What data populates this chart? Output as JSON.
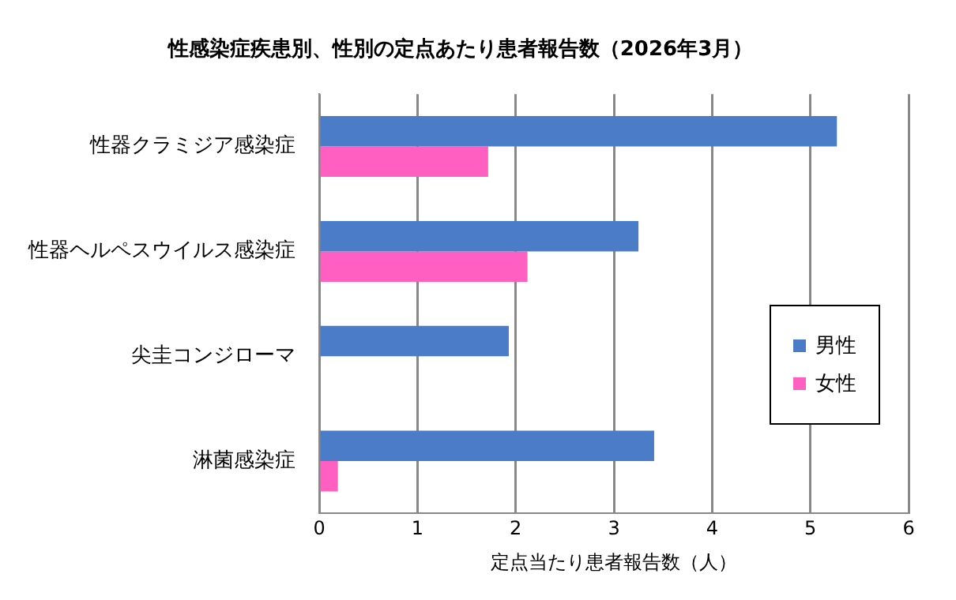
{
  "chart_data": {
    "type": "bar",
    "orientation": "horizontal",
    "title": "性感染症疾患別、性別の定点あたり患者報告数（2026年3月）",
    "xlabel": "定点当たり患者報告数（人）",
    "categories": [
      "性器クラミジア感染症",
      "性器ヘルペスウイルス感染症",
      "尖圭コンジローマ",
      "淋菌感染症"
    ],
    "series": [
      {
        "name": "男性",
        "color": "#4a7cc8",
        "values": [
          5.27,
          3.25,
          1.93,
          3.41
        ]
      },
      {
        "name": "女性",
        "color": "#ff5fc0",
        "values": [
          1.72,
          2.12,
          0,
          0.19
        ]
      }
    ],
    "xlim": [
      0,
      6
    ],
    "xticks": [
      0,
      1,
      2,
      3,
      4,
      5,
      6
    ],
    "grid": "x",
    "legend": "right"
  }
}
